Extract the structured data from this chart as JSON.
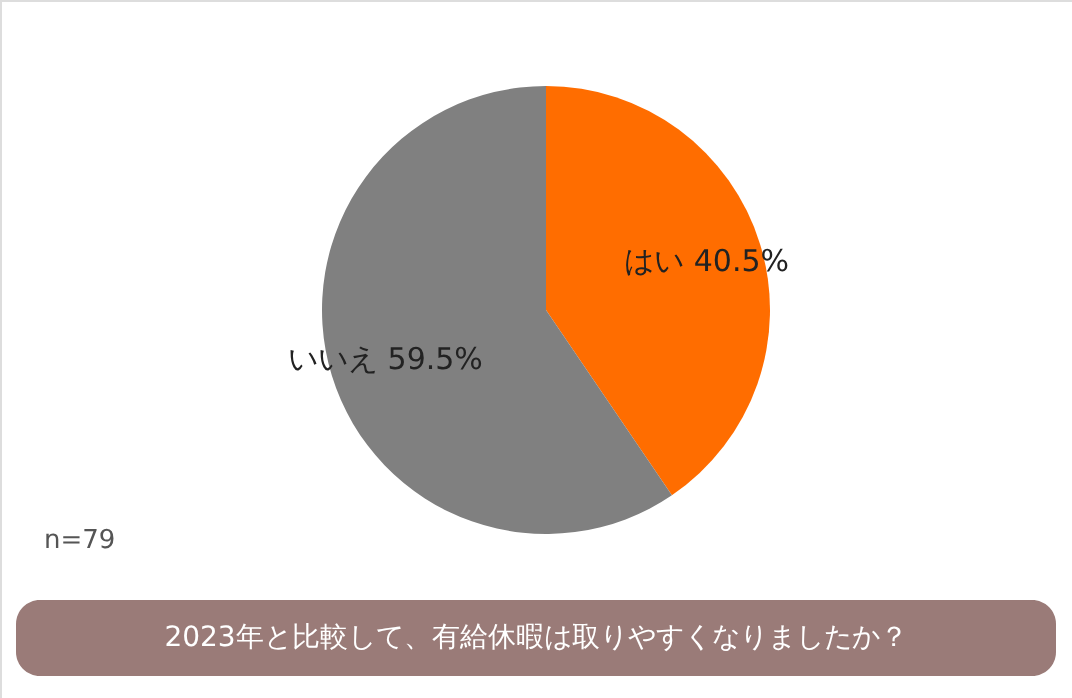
{
  "chart_data": {
    "type": "pie",
    "title": "2023年と比較して、有給休暇は取りやすくなりましたか？",
    "categories": [
      "はい",
      "いいえ"
    ],
    "values": [
      40.5,
      59.5
    ],
    "colors": [
      "#ff6d00",
      "#808080"
    ],
    "value_labels": [
      "40.5%",
      "59.5%"
    ],
    "annotations": [
      "n=79"
    ]
  }
}
